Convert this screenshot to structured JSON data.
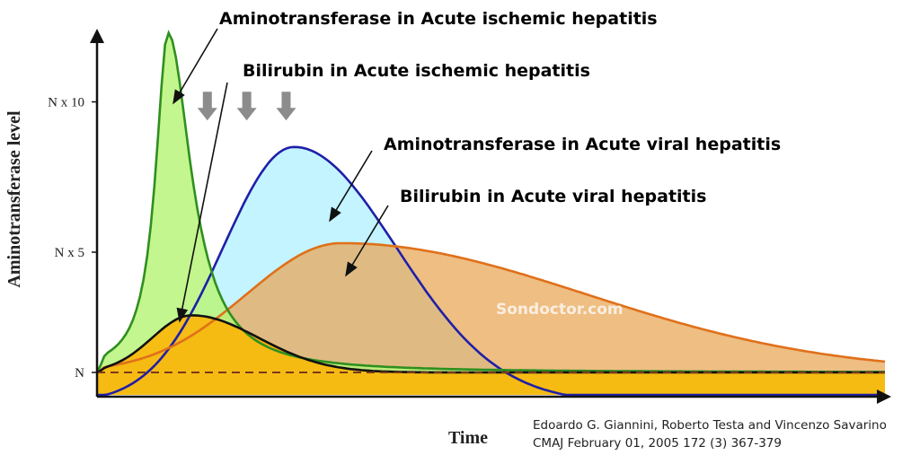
{
  "chart_data": {
    "type": "area",
    "xlabel": "Time",
    "ylabel": "Aminotransferase level",
    "y_ticks": [
      {
        "label": "N",
        "value": 1
      },
      {
        "label": "N x 5",
        "value": 5
      },
      {
        "label": "N x 10",
        "value": 10
      }
    ],
    "x_ticks": [],
    "grid": false,
    "legend": "none",
    "series": [
      {
        "name": "Aminotransferase in Acute ischemic hepatitis",
        "kind": "ischemic",
        "peak_time": 0.09,
        "peak_level": 12.3,
        "baseline": 1.0,
        "width_left": 0.019,
        "width_right": 0.036,
        "fill": "#b9f57a",
        "stroke": "#2f8f1f"
      },
      {
        "name": "Bilirubin in Acute ischemic hepatitis",
        "kind": "bump",
        "peak_time": 0.12,
        "peak_level": 2.9,
        "baseline": 1.0,
        "width_left": 0.05,
        "width_right": 0.085,
        "fill": "#ffb300",
        "stroke": "#111111"
      },
      {
        "name": "Aminotransferase in Acute viral hepatitis",
        "kind": "bump",
        "peak_time": 0.25,
        "peak_level": 8.5,
        "baseline": 0.0,
        "width_left": 0.09,
        "width_right": 0.13,
        "fill": "#b9f2ff",
        "stroke": "#1f1fa8"
      },
      {
        "name": "Bilirubin in Acute viral hepatitis",
        "kind": "bump",
        "peak_time": 0.31,
        "peak_level": 5.3,
        "baseline": 1.0,
        "width_left": 0.12,
        "width_right": 0.31,
        "fill": "#e8a85a",
        "stroke": "#e0701a"
      }
    ],
    "reference_line": {
      "label": "N",
      "value": 1
    },
    "arrows_down": [
      {
        "time": 0.095,
        "level": 14.5
      },
      {
        "time": 0.14,
        "level": 9.8
      },
      {
        "time": 0.19,
        "level": 9.8
      },
      {
        "time": 0.24,
        "level": 9.8
      }
    ]
  },
  "annotations": [
    "Aminotransferase in Acute ischemic hepatitis",
    "Bilirubin in Acute ischemic hepatitis",
    "Aminotransferase in Acute viral hepatitis",
    "Bilirubin in Acute viral hepatitis"
  ],
  "citation": {
    "line1": "Edoardo G. Giannini, Roberto Testa and Vincenzo Savarino",
    "line2": "CMAJ February 01, 2005 172 (3) 367-379"
  },
  "watermark": "Sondoctor.com"
}
